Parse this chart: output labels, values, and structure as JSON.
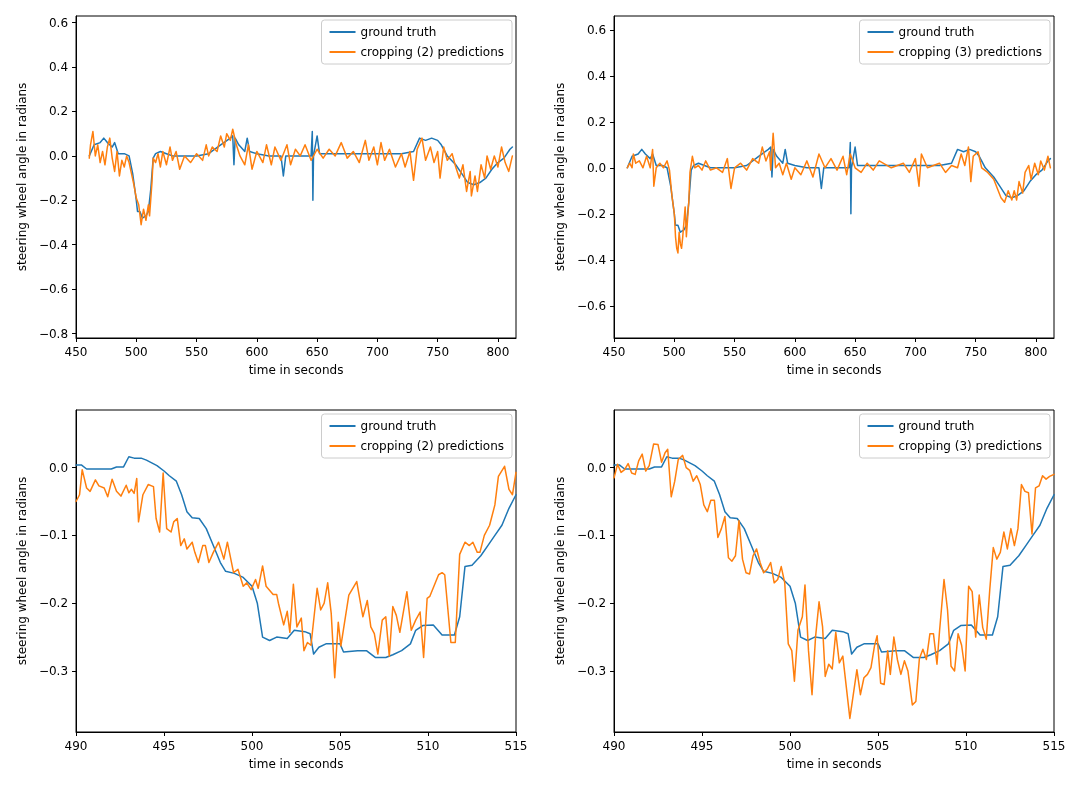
{
  "chart_data": [
    {
      "type": "line",
      "xlabel": "time in seconds",
      "ylabel": "steering wheel angle in radians",
      "xlim": [
        450,
        815
      ],
      "xticks": [
        450,
        500,
        550,
        600,
        650,
        700,
        750,
        800
      ],
      "ylim": [
        -0.82,
        0.63
      ],
      "yticks": [
        {
          "value": -0.8,
          "label": "−0.8"
        },
        {
          "value": -0.6,
          "label": "−0.6"
        },
        {
          "value": -0.4,
          "label": "−0.4"
        },
        {
          "value": -0.2,
          "label": "−0.2"
        },
        {
          "value": 0,
          "label": "0.0"
        },
        {
          "value": 0.2,
          "label": "0.2"
        },
        {
          "value": 0.4,
          "label": "0.4"
        },
        {
          "value": 0.6,
          "label": "0.6"
        }
      ],
      "grid": false,
      "legend": "top right",
      "series": [
        {
          "name": "ground truth",
          "color": "#1f77b4",
          "x": [
            461,
            465,
            470,
            473,
            476,
            480,
            482,
            485,
            490,
            494,
            497,
            500,
            501,
            503,
            505,
            508,
            510,
            512,
            514,
            516,
            520,
            525,
            530,
            540,
            550,
            560,
            570,
            578,
            580,
            581,
            582,
            585,
            590,
            592,
            594,
            600,
            610,
            620,
            622,
            624,
            640,
            645,
            646,
            646.5,
            647,
            650,
            652,
            680,
            700,
            720,
            730,
            735,
            740,
            745,
            750,
            753,
            758,
            765,
            770,
            775,
            780,
            785,
            790,
            795,
            800,
            805,
            810,
            812
          ],
          "values": [
            0.0,
            0.05,
            0.06,
            0.08,
            0.06,
            0.04,
            0.06,
            0.01,
            0.01,
            0.0,
            -0.08,
            -0.2,
            -0.25,
            -0.25,
            -0.28,
            -0.27,
            -0.25,
            -0.15,
            -0.01,
            0.01,
            0.02,
            0.01,
            0.0,
            0.0,
            0.0,
            0.01,
            0.05,
            0.08,
            0.09,
            -0.04,
            0.08,
            0.05,
            0.02,
            0.08,
            0.02,
            0.01,
            0.0,
            0.0,
            -0.09,
            0.0,
            0.0,
            0.0,
            0.11,
            -0.2,
            0.0,
            0.09,
            0.01,
            0.01,
            0.01,
            0.01,
            0.02,
            0.08,
            0.07,
            0.08,
            0.07,
            0.05,
            0.0,
            -0.04,
            -0.08,
            -0.12,
            -0.13,
            -0.12,
            -0.1,
            -0.06,
            -0.03,
            -0.01,
            0.03,
            0.04
          ]
        },
        {
          "name": "cropping (2) predictions",
          "color": "#ff7f0e",
          "x": [
            461,
            462,
            464,
            466,
            468,
            470,
            472,
            474,
            476,
            478,
            480,
            482,
            484,
            486,
            488,
            490,
            492,
            494,
            496,
            498,
            500,
            502,
            504,
            506,
            508,
            510,
            511,
            513,
            514,
            516,
            518,
            520,
            522,
            525,
            528,
            530,
            533,
            536,
            540,
            545,
            550,
            555,
            558,
            560,
            563,
            567,
            570,
            573,
            575,
            578,
            580,
            583,
            586,
            590,
            593,
            596,
            600,
            605,
            608,
            612,
            615,
            620,
            625,
            628,
            632,
            636,
            640,
            645,
            650,
            655,
            660,
            665,
            670,
            675,
            680,
            685,
            690,
            693,
            697,
            700,
            703,
            706,
            710,
            715,
            720,
            723,
            727,
            730,
            733,
            737,
            740,
            744,
            747,
            750,
            752,
            755,
            758,
            762,
            765,
            768,
            771,
            774,
            777,
            778,
            781,
            783,
            786,
            789,
            791,
            794,
            797,
            800,
            803,
            806,
            809,
            812
          ],
          "values": [
            -0.01,
            0.05,
            0.11,
            0.0,
            0.05,
            -0.03,
            0.02,
            -0.04,
            0.04,
            0.08,
            -0.01,
            -0.07,
            0.02,
            -0.09,
            -0.02,
            -0.05,
            0.0,
            -0.03,
            -0.08,
            -0.13,
            -0.19,
            -0.22,
            -0.31,
            -0.24,
            -0.29,
            -0.22,
            -0.27,
            -0.12,
            -0.01,
            -0.03,
            0.01,
            -0.05,
            0.02,
            -0.04,
            0.04,
            -0.02,
            0.02,
            -0.06,
            0.0,
            -0.03,
            0.01,
            -0.02,
            0.05,
            0.0,
            0.04,
            0.02,
            0.09,
            0.04,
            0.1,
            0.07,
            0.12,
            0.05,
            0.0,
            -0.04,
            0.05,
            -0.06,
            0.02,
            -0.03,
            0.05,
            -0.04,
            0.04,
            -0.02,
            0.05,
            -0.04,
            0.03,
            0.0,
            0.05,
            -0.02,
            0.03,
            -0.01,
            0.03,
            0.0,
            0.06,
            -0.01,
            0.02,
            -0.03,
            0.07,
            -0.02,
            0.04,
            -0.04,
            0.06,
            -0.02,
            0.03,
            -0.05,
            0.01,
            -0.05,
            0.02,
            -0.11,
            0.03,
            0.08,
            -0.02,
            0.04,
            -0.03,
            0.02,
            -0.1,
            0.04,
            -0.02,
            0.01,
            -0.05,
            -0.1,
            -0.04,
            -0.16,
            -0.07,
            -0.18,
            -0.09,
            -0.16,
            -0.04,
            -0.1,
            0.0,
            -0.06,
            0.0,
            -0.05,
            0.04,
            -0.03,
            -0.07,
            0.0
          ]
        }
      ]
    },
    {
      "type": "line",
      "xlabel": "time in seconds",
      "ylabel": "steering wheel angle in radians",
      "xlim": [
        450,
        815
      ],
      "xticks": [
        450,
        500,
        550,
        600,
        650,
        700,
        750,
        800
      ],
      "ylim": [
        -0.74,
        0.66
      ],
      "yticks": [
        {
          "value": -0.6,
          "label": "−0.6"
        },
        {
          "value": -0.4,
          "label": "−0.4"
        },
        {
          "value": -0.2,
          "label": "−0.2"
        },
        {
          "value": 0,
          "label": "0.0"
        },
        {
          "value": 0.2,
          "label": "0.2"
        },
        {
          "value": 0.4,
          "label": "0.4"
        },
        {
          "value": 0.6,
          "label": "0.6"
        }
      ],
      "grid": false,
      "legend": "top right",
      "series": [
        {
          "name": "ground truth",
          "color": "#1f77b4",
          "x": [
            461,
            465,
            470,
            473,
            476,
            480,
            482,
            485,
            490,
            494,
            497,
            500,
            501,
            503,
            505,
            508,
            510,
            512,
            514,
            516,
            520,
            525,
            530,
            540,
            550,
            560,
            570,
            578,
            580,
            581,
            582,
            585,
            590,
            592,
            594,
            600,
            610,
            620,
            622,
            624,
            640,
            645,
            646,
            646.5,
            647,
            650,
            652,
            680,
            700,
            720,
            730,
            735,
            740,
            745,
            750,
            753,
            758,
            765,
            770,
            775,
            780,
            785,
            790,
            795,
            800,
            805,
            810,
            812
          ],
          "values": [
            0.0,
            0.05,
            0.06,
            0.08,
            0.06,
            0.04,
            0.06,
            0.01,
            0.01,
            0.0,
            -0.08,
            -0.2,
            -0.25,
            -0.25,
            -0.28,
            -0.27,
            -0.25,
            -0.15,
            -0.01,
            0.01,
            0.02,
            0.01,
            0.0,
            0.0,
            0.0,
            0.01,
            0.05,
            0.08,
            0.09,
            -0.04,
            0.08,
            0.05,
            0.02,
            0.08,
            0.02,
            0.01,
            0.0,
            0.0,
            -0.09,
            0.0,
            0.0,
            0.0,
            0.11,
            -0.2,
            0.0,
            0.09,
            0.01,
            0.01,
            0.01,
            0.01,
            0.02,
            0.08,
            0.07,
            0.08,
            0.07,
            0.05,
            0.0,
            -0.04,
            -0.08,
            -0.12,
            -0.13,
            -0.12,
            -0.1,
            -0.06,
            -0.03,
            -0.01,
            0.03,
            0.04
          ]
        },
        {
          "name": "cropping (3) predictions",
          "color": "#ff7f0e",
          "x": [
            461,
            463,
            465,
            466,
            468,
            471,
            474,
            477,
            480,
            482,
            483,
            485,
            488,
            491,
            494,
            496,
            498,
            500,
            501,
            502,
            503,
            504,
            505,
            506,
            507,
            509,
            510,
            512,
            513,
            515,
            517,
            520,
            523,
            526,
            530,
            535,
            540,
            544,
            547,
            550,
            555,
            560,
            565,
            570,
            573,
            576,
            579,
            580,
            582,
            584,
            587,
            590,
            593,
            597,
            600,
            605,
            610,
            615,
            620,
            625,
            630,
            635,
            640,
            643,
            646,
            650,
            655,
            660,
            665,
            670,
            680,
            690,
            695,
            700,
            703,
            705,
            710,
            720,
            725,
            730,
            735,
            738,
            741,
            744,
            746,
            748,
            752,
            755,
            760,
            765,
            768,
            771,
            774,
            777,
            780,
            782,
            784,
            786,
            789,
            791,
            794,
            796,
            799,
            802,
            804,
            807,
            810,
            812
          ],
          "values": [
            0.0,
            0.02,
            0.0,
            0.06,
            0.02,
            0.03,
            0.0,
            0.05,
            0.0,
            0.08,
            -0.08,
            0.0,
            0.02,
            0.0,
            0.03,
            -0.01,
            -0.12,
            -0.2,
            -0.3,
            -0.35,
            -0.37,
            -0.28,
            -0.33,
            -0.35,
            -0.3,
            -0.17,
            -0.3,
            -0.15,
            -0.02,
            0.05,
            0.0,
            0.01,
            -0.01,
            0.03,
            -0.01,
            0.0,
            -0.02,
            0.04,
            -0.09,
            0.0,
            0.02,
            -0.01,
            0.04,
            0.02,
            0.09,
            0.03,
            0.07,
            -0.01,
            0.15,
            0.0,
            0.02,
            -0.03,
            0.02,
            -0.05,
            0.0,
            -0.03,
            0.03,
            -0.04,
            0.06,
            0.0,
            0.04,
            -0.01,
            0.05,
            -0.03,
            0.06,
            0.0,
            -0.02,
            0.02,
            -0.01,
            0.03,
            0.0,
            0.02,
            -0.02,
            0.04,
            -0.08,
            0.06,
            0.0,
            0.02,
            -0.02,
            0.01,
            0.0,
            0.06,
            0.01,
            0.09,
            -0.06,
            0.05,
            0.07,
            0.0,
            -0.02,
            -0.05,
            -0.09,
            -0.13,
            -0.15,
            -0.1,
            -0.14,
            -0.1,
            -0.14,
            -0.06,
            -0.11,
            -0.02,
            0.01,
            -0.05,
            0.02,
            -0.03,
            0.03,
            -0.01,
            0.05,
            0.0
          ]
        }
      ]
    },
    {
      "type": "line",
      "xlabel": "time in seconds",
      "ylabel": "steering wheel angle in radians",
      "xlim": [
        490,
        515
      ],
      "xticks": [
        490,
        495,
        500,
        505,
        510,
        515
      ],
      "ylim": [
        -0.39,
        0.085
      ],
      "yticks": [
        {
          "value": -0.3,
          "label": "−0.3"
        },
        {
          "value": -0.2,
          "label": "−0.2"
        },
        {
          "value": -0.1,
          "label": "−0.1"
        },
        {
          "value": 0,
          "label": "0.0"
        }
      ],
      "grid": false,
      "legend": "top right",
      "series": [
        {
          "name": "ground truth",
          "color": "#1f77b4",
          "x": [
            490,
            490.3,
            490.6,
            491,
            491.5,
            492,
            492.3,
            492.7,
            493,
            493.3,
            493.7,
            494,
            494.3,
            494.6,
            495,
            495.3,
            495.7,
            496,
            496.3,
            496.6,
            497,
            497.4,
            497.8,
            498.2,
            498.5,
            499,
            499.5,
            500,
            500.3,
            500.6,
            501,
            501.4,
            502,
            502.4,
            503,
            503.3,
            503.5,
            503.8,
            504.2,
            505,
            505.2,
            506,
            506.5,
            507,
            507.6,
            508,
            508.5,
            509,
            509.3,
            509.7,
            510.3,
            510.8,
            511.5,
            511.8,
            512.1,
            512.5,
            513,
            513.4,
            513.8,
            514.2,
            514.6,
            515
          ],
          "values": [
            0.004,
            0.004,
            -0.002,
            -0.002,
            -0.002,
            -0.002,
            0.001,
            0.001,
            0.016,
            0.014,
            0.014,
            0.011,
            0.007,
            0.003,
            -0.005,
            -0.012,
            -0.02,
            -0.04,
            -0.065,
            -0.074,
            -0.075,
            -0.09,
            -0.115,
            -0.14,
            -0.153,
            -0.156,
            -0.162,
            -0.175,
            -0.2,
            -0.25,
            -0.255,
            -0.25,
            -0.252,
            -0.24,
            -0.242,
            -0.245,
            -0.275,
            -0.265,
            -0.26,
            -0.26,
            -0.272,
            -0.27,
            -0.27,
            -0.28,
            -0.28,
            -0.276,
            -0.27,
            -0.26,
            -0.24,
            -0.233,
            -0.232,
            -0.247,
            -0.247,
            -0.22,
            -0.146,
            -0.144,
            -0.13,
            -0.115,
            -0.1,
            -0.085,
            -0.06,
            -0.04
          ]
        },
        {
          "name": "cropping (2) predictions",
          "color": "#ff7f0e",
          "x": [
            490,
            490.2,
            490.35,
            490.6,
            490.8,
            491.1,
            491.3,
            491.6,
            491.8,
            492.05,
            492.3,
            492.55,
            492.85,
            493,
            493.15,
            493.3,
            493.45,
            493.55,
            493.8,
            494.1,
            494.4,
            494.55,
            494.75,
            494.95,
            495.15,
            495.4,
            495.55,
            495.75,
            495.95,
            496.15,
            496.3,
            496.6,
            496.75,
            496.95,
            497.2,
            497.35,
            497.55,
            497.8,
            498.1,
            498.4,
            498.6,
            498.95,
            499.2,
            499.5,
            499.7,
            499.95,
            500.2,
            500.35,
            500.6,
            500.8,
            501.2,
            501.4,
            501.5,
            501.8,
            502,
            502.15,
            502.35,
            502.55,
            502.8,
            502.95,
            503.15,
            503.35,
            503.7,
            503.9,
            504.1,
            504.3,
            504.5,
            504.7,
            504.9,
            505.05,
            505.5,
            505.95,
            506.3,
            506.55,
            506.75,
            506.95,
            507.15,
            507.4,
            507.6,
            507.8,
            508,
            508.2,
            508.4,
            508.8,
            509.05,
            509.3,
            509.55,
            509.75,
            509.95,
            510.1,
            510.6,
            510.8,
            510.95,
            511.3,
            511.55,
            511.8,
            512.1,
            512.35,
            512.55,
            512.8,
            512.95,
            513.2,
            513.5,
            513.8,
            514,
            514.35,
            514.6,
            514.8,
            515
          ],
          "values": [
            -0.05,
            -0.04,
            -0.003,
            -0.03,
            -0.035,
            -0.018,
            -0.027,
            -0.03,
            -0.043,
            -0.017,
            -0.035,
            -0.042,
            -0.026,
            -0.037,
            -0.032,
            -0.038,
            -0.016,
            -0.08,
            -0.04,
            -0.025,
            -0.028,
            -0.075,
            -0.095,
            -0.008,
            -0.09,
            -0.095,
            -0.08,
            -0.075,
            -0.115,
            -0.105,
            -0.12,
            -0.11,
            -0.125,
            -0.14,
            -0.115,
            -0.115,
            -0.14,
            -0.125,
            -0.11,
            -0.135,
            -0.11,
            -0.155,
            -0.15,
            -0.175,
            -0.17,
            -0.18,
            -0.165,
            -0.178,
            -0.145,
            -0.175,
            -0.187,
            -0.187,
            -0.2,
            -0.232,
            -0.212,
            -0.243,
            -0.172,
            -0.235,
            -0.222,
            -0.27,
            -0.258,
            -0.262,
            -0.178,
            -0.21,
            -0.2,
            -0.17,
            -0.215,
            -0.31,
            -0.228,
            -0.263,
            -0.188,
            -0.168,
            -0.22,
            -0.196,
            -0.235,
            -0.245,
            -0.275,
            -0.225,
            -0.22,
            -0.278,
            -0.205,
            -0.218,
            -0.243,
            -0.183,
            -0.24,
            -0.225,
            -0.213,
            -0.28,
            -0.193,
            -0.19,
            -0.158,
            -0.155,
            -0.158,
            -0.258,
            -0.258,
            -0.128,
            -0.11,
            -0.115,
            -0.11,
            -0.125,
            -0.125,
            -0.1,
            -0.085,
            -0.055,
            -0.013,
            0.002,
            -0.032,
            -0.04,
            -0.007
          ]
        }
      ]
    },
    {
      "type": "line",
      "xlabel": "time in seconds",
      "ylabel": "steering wheel angle in radians",
      "xlim": [
        490,
        515
      ],
      "xticks": [
        490,
        495,
        500,
        505,
        510,
        515
      ],
      "ylim": [
        -0.39,
        0.085
      ],
      "yticks": [
        {
          "value": -0.3,
          "label": "−0.3"
        },
        {
          "value": -0.2,
          "label": "−0.2"
        },
        {
          "value": -0.1,
          "label": "−0.1"
        },
        {
          "value": 0,
          "label": "0.0"
        }
      ],
      "grid": false,
      "legend": "top right",
      "series": [
        {
          "name": "ground truth",
          "color": "#1f77b4",
          "x": [
            490,
            490.3,
            490.6,
            491,
            491.5,
            492,
            492.3,
            492.7,
            493,
            493.3,
            493.7,
            494,
            494.3,
            494.6,
            495,
            495.3,
            495.7,
            496,
            496.3,
            496.6,
            497,
            497.4,
            497.8,
            498.2,
            498.5,
            499,
            499.5,
            500,
            500.3,
            500.6,
            501,
            501.4,
            502,
            502.4,
            503,
            503.3,
            503.5,
            503.8,
            504.2,
            505,
            505.2,
            506,
            506.5,
            507,
            507.6,
            508,
            508.5,
            509,
            509.3,
            509.7,
            510.3,
            510.8,
            511.5,
            511.8,
            512.1,
            512.5,
            513,
            513.4,
            513.8,
            514.2,
            514.6,
            515
          ],
          "values": [
            0.004,
            0.004,
            -0.002,
            -0.002,
            -0.002,
            -0.002,
            0.001,
            0.001,
            0.016,
            0.014,
            0.014,
            0.011,
            0.007,
            0.003,
            -0.005,
            -0.012,
            -0.02,
            -0.04,
            -0.065,
            -0.074,
            -0.075,
            -0.09,
            -0.115,
            -0.14,
            -0.153,
            -0.156,
            -0.162,
            -0.175,
            -0.2,
            -0.25,
            -0.255,
            -0.25,
            -0.252,
            -0.24,
            -0.242,
            -0.245,
            -0.275,
            -0.265,
            -0.26,
            -0.26,
            -0.272,
            -0.27,
            -0.27,
            -0.28,
            -0.28,
            -0.276,
            -0.27,
            -0.26,
            -0.24,
            -0.233,
            -0.232,
            -0.247,
            -0.247,
            -0.22,
            -0.146,
            -0.144,
            -0.13,
            -0.115,
            -0.1,
            -0.085,
            -0.06,
            -0.04
          ]
        },
        {
          "name": "cropping (3) predictions",
          "color": "#ff7f0e",
          "x": [
            490,
            490.2,
            490.4,
            490.6,
            490.8,
            491,
            491.2,
            491.4,
            491.6,
            491.8,
            492,
            492.25,
            492.5,
            492.7,
            492.9,
            493.05,
            493.25,
            493.45,
            493.65,
            493.9,
            494.1,
            494.3,
            494.5,
            494.7,
            494.9,
            495.1,
            495.3,
            495.5,
            495.7,
            495.9,
            496.1,
            496.3,
            496.5,
            496.7,
            496.9,
            497.1,
            497.3,
            497.5,
            497.7,
            497.9,
            498.1,
            498.3,
            498.5,
            498.7,
            498.9,
            499.1,
            499.3,
            499.5,
            499.7,
            499.9,
            500.1,
            500.25,
            500.45,
            500.7,
            500.85,
            501.05,
            501.25,
            501.45,
            501.65,
            501.85,
            502,
            502.2,
            502.4,
            502.6,
            502.8,
            503,
            503.4,
            503.8,
            504,
            504.2,
            504.4,
            504.6,
            504.8,
            504.95,
            505.15,
            505.35,
            505.55,
            505.7,
            505.9,
            506.1,
            506.3,
            506.5,
            506.7,
            506.95,
            507.15,
            507.35,
            507.55,
            507.75,
            507.95,
            508.15,
            508.35,
            508.5,
            508.75,
            508.95,
            509.15,
            509.35,
            509.55,
            509.75,
            509.95,
            510.15,
            510.35,
            510.55,
            510.75,
            510.95,
            511.15,
            511.35,
            511.55,
            511.75,
            511.95,
            512.15,
            512.35,
            512.55,
            512.75,
            512.95,
            513.15,
            513.35,
            513.55,
            513.75,
            513.95,
            514.15,
            514.35,
            514.55,
            514.75,
            515
          ],
          "values": [
            -0.015,
            0.005,
            -0.007,
            -0.003,
            0.006,
            -0.008,
            -0.01,
            0.01,
            0.02,
            -0.005,
            0.003,
            0.035,
            0.034,
            0.008,
            0.022,
            0.027,
            -0.043,
            -0.02,
            0.012,
            0.018,
            0.0,
            -0.004,
            -0.02,
            -0.012,
            -0.025,
            -0.055,
            -0.065,
            -0.048,
            -0.048,
            -0.103,
            -0.09,
            -0.072,
            -0.133,
            -0.138,
            -0.13,
            -0.078,
            -0.135,
            -0.155,
            -0.157,
            -0.13,
            -0.12,
            -0.14,
            -0.155,
            -0.15,
            -0.14,
            -0.17,
            -0.165,
            -0.146,
            -0.17,
            -0.26,
            -0.27,
            -0.315,
            -0.24,
            -0.22,
            -0.173,
            -0.27,
            -0.335,
            -0.25,
            -0.198,
            -0.235,
            -0.308,
            -0.29,
            -0.297,
            -0.243,
            -0.288,
            -0.278,
            -0.37,
            -0.298,
            -0.335,
            -0.31,
            -0.305,
            -0.295,
            -0.263,
            -0.248,
            -0.318,
            -0.32,
            -0.27,
            -0.305,
            -0.25,
            -0.283,
            -0.305,
            -0.285,
            -0.3,
            -0.35,
            -0.345,
            -0.282,
            -0.268,
            -0.283,
            -0.245,
            -0.245,
            -0.29,
            -0.24,
            -0.165,
            -0.21,
            -0.293,
            -0.3,
            -0.245,
            -0.262,
            -0.3,
            -0.175,
            -0.183,
            -0.25,
            -0.188,
            -0.236,
            -0.253,
            -0.18,
            -0.118,
            -0.135,
            -0.125,
            -0.095,
            -0.12,
            -0.09,
            -0.115,
            -0.09,
            -0.025,
            -0.035,
            -0.037,
            -0.098,
            -0.03,
            -0.027,
            -0.012,
            -0.017,
            -0.013,
            -0.01
          ]
        }
      ]
    }
  ]
}
